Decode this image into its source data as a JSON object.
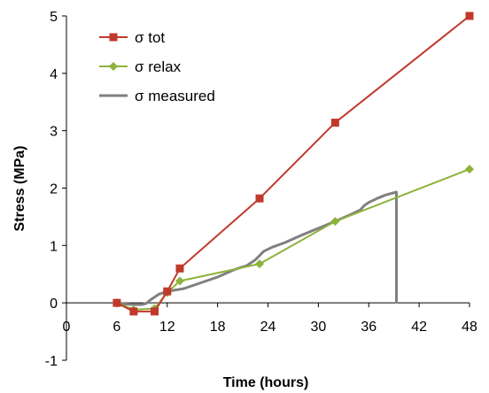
{
  "chart_data": {
    "type": "line",
    "xlabel": "Time (hours)",
    "ylabel": "Stress (MPa)",
    "xlim": [
      0,
      48
    ],
    "ylim": [
      -1,
      5
    ],
    "xticks": [
      0,
      6,
      12,
      18,
      24,
      30,
      36,
      42,
      48
    ],
    "yticks": [
      -1,
      0,
      1,
      2,
      3,
      4,
      5
    ],
    "grid": false,
    "legend": "top-left",
    "series": [
      {
        "name": "σ tot",
        "color": "#c0392b",
        "marker": "square",
        "x": [
          6,
          8,
          10.5,
          12,
          13.5,
          23,
          32,
          48
        ],
        "y": [
          0.0,
          -0.15,
          -0.15,
          0.2,
          0.6,
          1.82,
          3.14,
          5.0
        ]
      },
      {
        "name": "σ relax",
        "color": "#8db33a",
        "marker": "diamond",
        "x": [
          6,
          8,
          10.5,
          12,
          13.5,
          23,
          32,
          48
        ],
        "y": [
          0.0,
          -0.12,
          -0.1,
          0.18,
          0.38,
          0.68,
          1.42,
          2.33
        ]
      },
      {
        "name": "σ measured",
        "color": "#808080",
        "marker": "none",
        "x": [
          6,
          7,
          8,
          9,
          9.5,
          10,
          11,
          12,
          14,
          16,
          18,
          20,
          21.5,
          22.5,
          23.5,
          24.5,
          26,
          28,
          30,
          32,
          34,
          35,
          35.5,
          36,
          37,
          38,
          39.3,
          39.3
        ],
        "y": [
          -0.02,
          -0.02,
          -0.03,
          -0.03,
          -0.01,
          0.05,
          0.15,
          0.2,
          0.25,
          0.35,
          0.45,
          0.58,
          0.65,
          0.75,
          0.9,
          0.97,
          1.05,
          1.18,
          1.3,
          1.42,
          1.55,
          1.62,
          1.7,
          1.75,
          1.82,
          1.88,
          1.93,
          0.0
        ]
      }
    ]
  }
}
